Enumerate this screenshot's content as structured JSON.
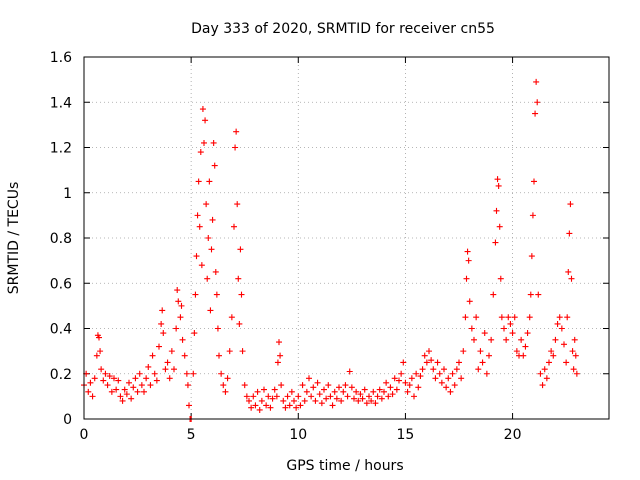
{
  "chart_data": {
    "type": "scatter",
    "title": "Day 333 of 2020, SRMTID for receiver cn55",
    "xlabel": "GPS time / hours",
    "ylabel": "SRMTID / TECUs",
    "xlim": [
      0,
      24.5
    ],
    "ylim": [
      0,
      1.6
    ],
    "x_ticks": [
      0,
      5,
      10,
      15,
      20
    ],
    "x_tick_labels": [
      "0",
      "5",
      "10",
      "15",
      "20"
    ],
    "y_ticks": [
      0,
      0.2,
      0.4,
      0.6,
      0.8,
      1.0,
      1.2,
      1.4,
      1.6
    ],
    "y_tick_labels": [
      "0",
      "0.2",
      "0.4",
      "0.6",
      "0.8",
      "1",
      "1.2",
      "1.4",
      "1.6"
    ],
    "grid": true,
    "marker": "+",
    "color": "#ff0000",
    "series": [
      {
        "name": "SRMTID",
        "points": [
          [
            0.0,
            0.15
          ],
          [
            0.1,
            0.2
          ],
          [
            0.2,
            0.12
          ],
          [
            0.3,
            0.16
          ],
          [
            0.4,
            0.1
          ],
          [
            0.5,
            0.18
          ],
          [
            0.6,
            0.28
          ],
          [
            0.65,
            0.37
          ],
          [
            0.7,
            0.36
          ],
          [
            0.75,
            0.3
          ],
          [
            0.8,
            0.22
          ],
          [
            0.9,
            0.17
          ],
          [
            1.0,
            0.2
          ],
          [
            1.1,
            0.15
          ],
          [
            1.2,
            0.19
          ],
          [
            1.3,
            0.12
          ],
          [
            1.4,
            0.18
          ],
          [
            1.5,
            0.13
          ],
          [
            1.6,
            0.17
          ],
          [
            1.7,
            0.1
          ],
          [
            1.8,
            0.08
          ],
          [
            1.9,
            0.13
          ],
          [
            2.0,
            0.11
          ],
          [
            2.1,
            0.16
          ],
          [
            2.2,
            0.09
          ],
          [
            2.3,
            0.14
          ],
          [
            2.4,
            0.18
          ],
          [
            2.5,
            0.12
          ],
          [
            2.6,
            0.2
          ],
          [
            2.7,
            0.15
          ],
          [
            2.8,
            0.12
          ],
          [
            2.9,
            0.18
          ],
          [
            3.0,
            0.23
          ],
          [
            3.1,
            0.15
          ],
          [
            3.2,
            0.28
          ],
          [
            3.3,
            0.2
          ],
          [
            3.4,
            0.17
          ],
          [
            3.5,
            0.32
          ],
          [
            3.6,
            0.42
          ],
          [
            3.65,
            0.48
          ],
          [
            3.7,
            0.38
          ],
          [
            3.8,
            0.22
          ],
          [
            3.9,
            0.25
          ],
          [
            4.0,
            0.18
          ],
          [
            4.1,
            0.3
          ],
          [
            4.2,
            0.22
          ],
          [
            4.3,
            0.4
          ],
          [
            4.35,
            0.57
          ],
          [
            4.4,
            0.52
          ],
          [
            4.5,
            0.45
          ],
          [
            4.55,
            0.5
          ],
          [
            4.6,
            0.35
          ],
          [
            4.7,
            0.28
          ],
          [
            4.8,
            0.2
          ],
          [
            4.85,
            0.15
          ],
          [
            4.9,
            0.06
          ],
          [
            4.95,
            0.0
          ],
          [
            5.0,
            0.0
          ],
          [
            5.1,
            0.2
          ],
          [
            5.15,
            0.38
          ],
          [
            5.2,
            0.55
          ],
          [
            5.25,
            0.72
          ],
          [
            5.3,
            0.9
          ],
          [
            5.35,
            1.05
          ],
          [
            5.4,
            0.85
          ],
          [
            5.45,
            1.18
          ],
          [
            5.5,
            0.68
          ],
          [
            5.55,
            1.37
          ],
          [
            5.6,
            1.22
          ],
          [
            5.65,
            1.32
          ],
          [
            5.7,
            0.95
          ],
          [
            5.75,
            0.62
          ],
          [
            5.8,
            0.8
          ],
          [
            5.85,
            1.05
          ],
          [
            5.9,
            0.48
          ],
          [
            5.95,
            0.75
          ],
          [
            6.0,
            0.88
          ],
          [
            6.05,
            1.22
          ],
          [
            6.1,
            1.12
          ],
          [
            6.15,
            0.65
          ],
          [
            6.2,
            0.55
          ],
          [
            6.25,
            0.4
          ],
          [
            6.3,
            0.28
          ],
          [
            6.4,
            0.2
          ],
          [
            6.5,
            0.15
          ],
          [
            6.6,
            0.12
          ],
          [
            6.7,
            0.18
          ],
          [
            6.8,
            0.3
          ],
          [
            6.9,
            0.45
          ],
          [
            7.0,
            0.85
          ],
          [
            7.05,
            1.2
          ],
          [
            7.1,
            1.27
          ],
          [
            7.15,
            0.95
          ],
          [
            7.2,
            0.62
          ],
          [
            7.25,
            0.42
          ],
          [
            7.3,
            0.75
          ],
          [
            7.35,
            0.55
          ],
          [
            7.4,
            0.3
          ],
          [
            7.5,
            0.15
          ],
          [
            7.6,
            0.1
          ],
          [
            7.7,
            0.08
          ],
          [
            7.8,
            0.05
          ],
          [
            7.9,
            0.1
          ],
          [
            8.0,
            0.06
          ],
          [
            8.1,
            0.12
          ],
          [
            8.2,
            0.04
          ],
          [
            8.3,
            0.08
          ],
          [
            8.4,
            0.13
          ],
          [
            8.5,
            0.06
          ],
          [
            8.6,
            0.1
          ],
          [
            8.7,
            0.05
          ],
          [
            8.8,
            0.09
          ],
          [
            8.9,
            0.13
          ],
          [
            9.0,
            0.1
          ],
          [
            9.05,
            0.25
          ],
          [
            9.1,
            0.34
          ],
          [
            9.15,
            0.28
          ],
          [
            9.2,
            0.15
          ],
          [
            9.3,
            0.08
          ],
          [
            9.4,
            0.05
          ],
          [
            9.5,
            0.1
          ],
          [
            9.6,
            0.06
          ],
          [
            9.7,
            0.12
          ],
          [
            9.8,
            0.08
          ],
          [
            9.9,
            0.05
          ],
          [
            10.0,
            0.1
          ],
          [
            10.1,
            0.06
          ],
          [
            10.2,
            0.15
          ],
          [
            10.3,
            0.08
          ],
          [
            10.4,
            0.12
          ],
          [
            10.5,
            0.18
          ],
          [
            10.6,
            0.1
          ],
          [
            10.7,
            0.14
          ],
          [
            10.8,
            0.08
          ],
          [
            10.9,
            0.16
          ],
          [
            11.0,
            0.11
          ],
          [
            11.1,
            0.07
          ],
          [
            11.2,
            0.13
          ],
          [
            11.3,
            0.09
          ],
          [
            11.4,
            0.15
          ],
          [
            11.5,
            0.1
          ],
          [
            11.6,
            0.06
          ],
          [
            11.7,
            0.12
          ],
          [
            11.8,
            0.09
          ],
          [
            11.9,
            0.14
          ],
          [
            12.0,
            0.08
          ],
          [
            12.1,
            0.12
          ],
          [
            12.2,
            0.15
          ],
          [
            12.3,
            0.1
          ],
          [
            12.4,
            0.21
          ],
          [
            12.5,
            0.14
          ],
          [
            12.6,
            0.09
          ],
          [
            12.7,
            0.12
          ],
          [
            12.8,
            0.08
          ],
          [
            12.9,
            0.11
          ],
          [
            13.0,
            0.09
          ],
          [
            13.1,
            0.13
          ],
          [
            13.2,
            0.07
          ],
          [
            13.3,
            0.1
          ],
          [
            13.4,
            0.08
          ],
          [
            13.5,
            0.12
          ],
          [
            13.6,
            0.07
          ],
          [
            13.7,
            0.1
          ],
          [
            13.8,
            0.13
          ],
          [
            13.9,
            0.09
          ],
          [
            14.0,
            0.12
          ],
          [
            14.1,
            0.16
          ],
          [
            14.2,
            0.1
          ],
          [
            14.3,
            0.14
          ],
          [
            14.4,
            0.11
          ],
          [
            14.5,
            0.18
          ],
          [
            14.6,
            0.13
          ],
          [
            14.7,
            0.17
          ],
          [
            14.8,
            0.2
          ],
          [
            14.9,
            0.25
          ],
          [
            15.0,
            0.16
          ],
          [
            15.1,
            0.12
          ],
          [
            15.2,
            0.15
          ],
          [
            15.3,
            0.18
          ],
          [
            15.4,
            0.1
          ],
          [
            15.5,
            0.2
          ],
          [
            15.6,
            0.14
          ],
          [
            15.7,
            0.19
          ],
          [
            15.8,
            0.22
          ],
          [
            15.9,
            0.28
          ],
          [
            16.0,
            0.25
          ],
          [
            16.1,
            0.3
          ],
          [
            16.2,
            0.26
          ],
          [
            16.3,
            0.22
          ],
          [
            16.4,
            0.18
          ],
          [
            16.5,
            0.25
          ],
          [
            16.6,
            0.2
          ],
          [
            16.7,
            0.16
          ],
          [
            16.8,
            0.22
          ],
          [
            16.9,
            0.14
          ],
          [
            17.0,
            0.18
          ],
          [
            17.1,
            0.12
          ],
          [
            17.2,
            0.2
          ],
          [
            17.3,
            0.15
          ],
          [
            17.4,
            0.22
          ],
          [
            17.5,
            0.25
          ],
          [
            17.6,
            0.18
          ],
          [
            17.7,
            0.3
          ],
          [
            17.8,
            0.45
          ],
          [
            17.85,
            0.62
          ],
          [
            17.9,
            0.74
          ],
          [
            17.95,
            0.7
          ],
          [
            18.0,
            0.52
          ],
          [
            18.1,
            0.4
          ],
          [
            18.2,
            0.35
          ],
          [
            18.3,
            0.45
          ],
          [
            18.4,
            0.22
          ],
          [
            18.5,
            0.3
          ],
          [
            18.6,
            0.25
          ],
          [
            18.7,
            0.38
          ],
          [
            18.8,
            0.2
          ],
          [
            18.9,
            0.28
          ],
          [
            19.0,
            0.35
          ],
          [
            19.1,
            0.55
          ],
          [
            19.2,
            0.78
          ],
          [
            19.25,
            0.92
          ],
          [
            19.3,
            1.06
          ],
          [
            19.35,
            1.03
          ],
          [
            19.4,
            0.85
          ],
          [
            19.45,
            0.62
          ],
          [
            19.5,
            0.45
          ],
          [
            19.6,
            0.4
          ],
          [
            19.7,
            0.35
          ],
          [
            19.8,
            0.45
          ],
          [
            19.9,
            0.42
          ],
          [
            20.0,
            0.38
          ],
          [
            20.1,
            0.45
          ],
          [
            20.2,
            0.3
          ],
          [
            20.3,
            0.28
          ],
          [
            20.4,
            0.35
          ],
          [
            20.5,
            0.28
          ],
          [
            20.6,
            0.32
          ],
          [
            20.7,
            0.38
          ],
          [
            20.8,
            0.45
          ],
          [
            20.85,
            0.55
          ],
          [
            20.9,
            0.72
          ],
          [
            20.95,
            0.9
          ],
          [
            21.0,
            1.05
          ],
          [
            21.05,
            1.35
          ],
          [
            21.1,
            1.49
          ],
          [
            21.15,
            1.4
          ],
          [
            21.2,
            0.55
          ],
          [
            21.3,
            0.2
          ],
          [
            21.4,
            0.15
          ],
          [
            21.5,
            0.22
          ],
          [
            21.6,
            0.18
          ],
          [
            21.7,
            0.25
          ],
          [
            21.8,
            0.3
          ],
          [
            21.9,
            0.28
          ],
          [
            22.0,
            0.35
          ],
          [
            22.1,
            0.42
          ],
          [
            22.2,
            0.45
          ],
          [
            22.3,
            0.4
          ],
          [
            22.4,
            0.33
          ],
          [
            22.5,
            0.25
          ],
          [
            22.55,
            0.45
          ],
          [
            22.6,
            0.65
          ],
          [
            22.65,
            0.82
          ],
          [
            22.7,
            0.95
          ],
          [
            22.75,
            0.62
          ],
          [
            22.8,
            0.3
          ],
          [
            22.85,
            0.22
          ],
          [
            22.9,
            0.35
          ],
          [
            22.95,
            0.28
          ],
          [
            23.0,
            0.2
          ]
        ]
      }
    ]
  }
}
